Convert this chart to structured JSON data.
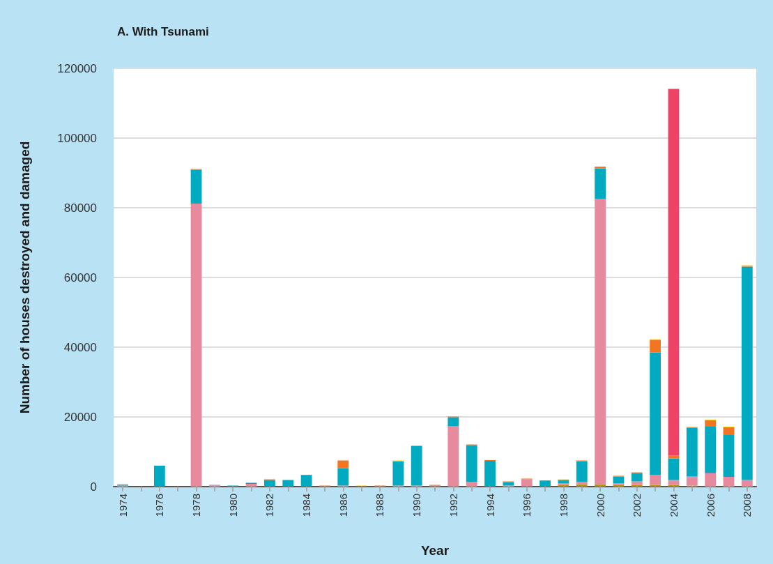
{
  "chart_data": {
    "type": "bar",
    "title": "A. With Tsunami",
    "xlabel": "Year",
    "ylabel": "Number of houses destroyed and damaged",
    "categories": [
      "1974",
      null,
      "1976",
      null,
      "1978",
      null,
      "1980",
      null,
      "1982",
      null,
      "1984",
      null,
      "1986",
      null,
      "1988",
      null,
      "1990",
      null,
      "1992",
      null,
      "1994",
      null,
      "1996",
      null,
      "1998",
      null,
      "2000",
      null,
      "2002",
      null,
      "2004",
      null,
      "2006",
      null,
      "2008"
    ],
    "stacked": true,
    "grid": "y",
    "ylim": [
      0,
      120000
    ],
    "yticks": [
      0,
      20000,
      40000,
      60000,
      80000,
      100000,
      120000
    ],
    "series": [
      {
        "color": "#b8960c",
        "values": [
          null,
          null,
          null,
          null,
          null,
          null,
          null,
          null,
          null,
          null,
          null,
          null,
          null,
          null,
          null,
          null,
          null,
          null,
          null,
          null,
          null,
          null,
          200,
          null,
          500,
          700,
          700,
          500,
          500,
          500,
          500,
          300,
          null,
          null,
          null
        ]
      },
      {
        "color": "#e88a9e",
        "values": [
          300,
          null,
          null,
          null,
          81200,
          300,
          null,
          800,
          null,
          null,
          null,
          null,
          300,
          null,
          null,
          300,
          300,
          null,
          17300,
          1300,
          null,
          300,
          1900,
          null,
          400,
          600,
          81800,
          400,
          1000,
          2800,
          1200,
          2400,
          3800,
          2800,
          1900
        ]
      },
      {
        "color": "#9b7fb5",
        "values": [
          null,
          null,
          null,
          null,
          null,
          200,
          null,
          null,
          null,
          null,
          null,
          null,
          null,
          null,
          null,
          null,
          null,
          300,
          null,
          null,
          null,
          null,
          null,
          null,
          null,
          null,
          null,
          null,
          null,
          null,
          200,
          200,
          200,
          null,
          null
        ]
      },
      {
        "color": "#00aac0",
        "values": [
          300,
          null,
          6000,
          null,
          9700,
          null,
          300,
          300,
          1900,
          1900,
          3200,
          null,
          5000,
          200,
          null,
          7000,
          11400,
          null,
          2600,
          10600,
          7400,
          1000,
          null,
          1600,
          1000,
          6000,
          8800,
          2000,
          2400,
          35200,
          6200,
          14000,
          13200,
          12000,
          61200
        ]
      },
      {
        "color": "#f47521",
        "values": [
          null,
          null,
          null,
          null,
          200,
          null,
          null,
          null,
          200,
          null,
          200,
          300,
          2200,
          null,
          300,
          null,
          null,
          200,
          200,
          200,
          200,
          200,
          200,
          200,
          null,
          200,
          500,
          200,
          200,
          3600,
          800,
          200,
          1800,
          2200,
          200
        ]
      },
      {
        "color": "#ee4367",
        "values": [
          null,
          null,
          null,
          null,
          null,
          null,
          null,
          null,
          null,
          null,
          null,
          null,
          null,
          null,
          null,
          null,
          null,
          null,
          null,
          null,
          null,
          null,
          null,
          null,
          null,
          null,
          null,
          null,
          null,
          null,
          105200,
          null,
          null,
          null,
          null
        ]
      },
      {
        "color": "#f7c81e",
        "values": [
          null,
          null,
          null,
          null,
          null,
          null,
          null,
          null,
          null,
          null,
          null,
          null,
          null,
          100,
          null,
          200,
          null,
          null,
          null,
          null,
          null,
          null,
          null,
          null,
          200,
          null,
          null,
          null,
          null,
          200,
          null,
          null,
          200,
          200,
          200
        ]
      }
    ]
  }
}
